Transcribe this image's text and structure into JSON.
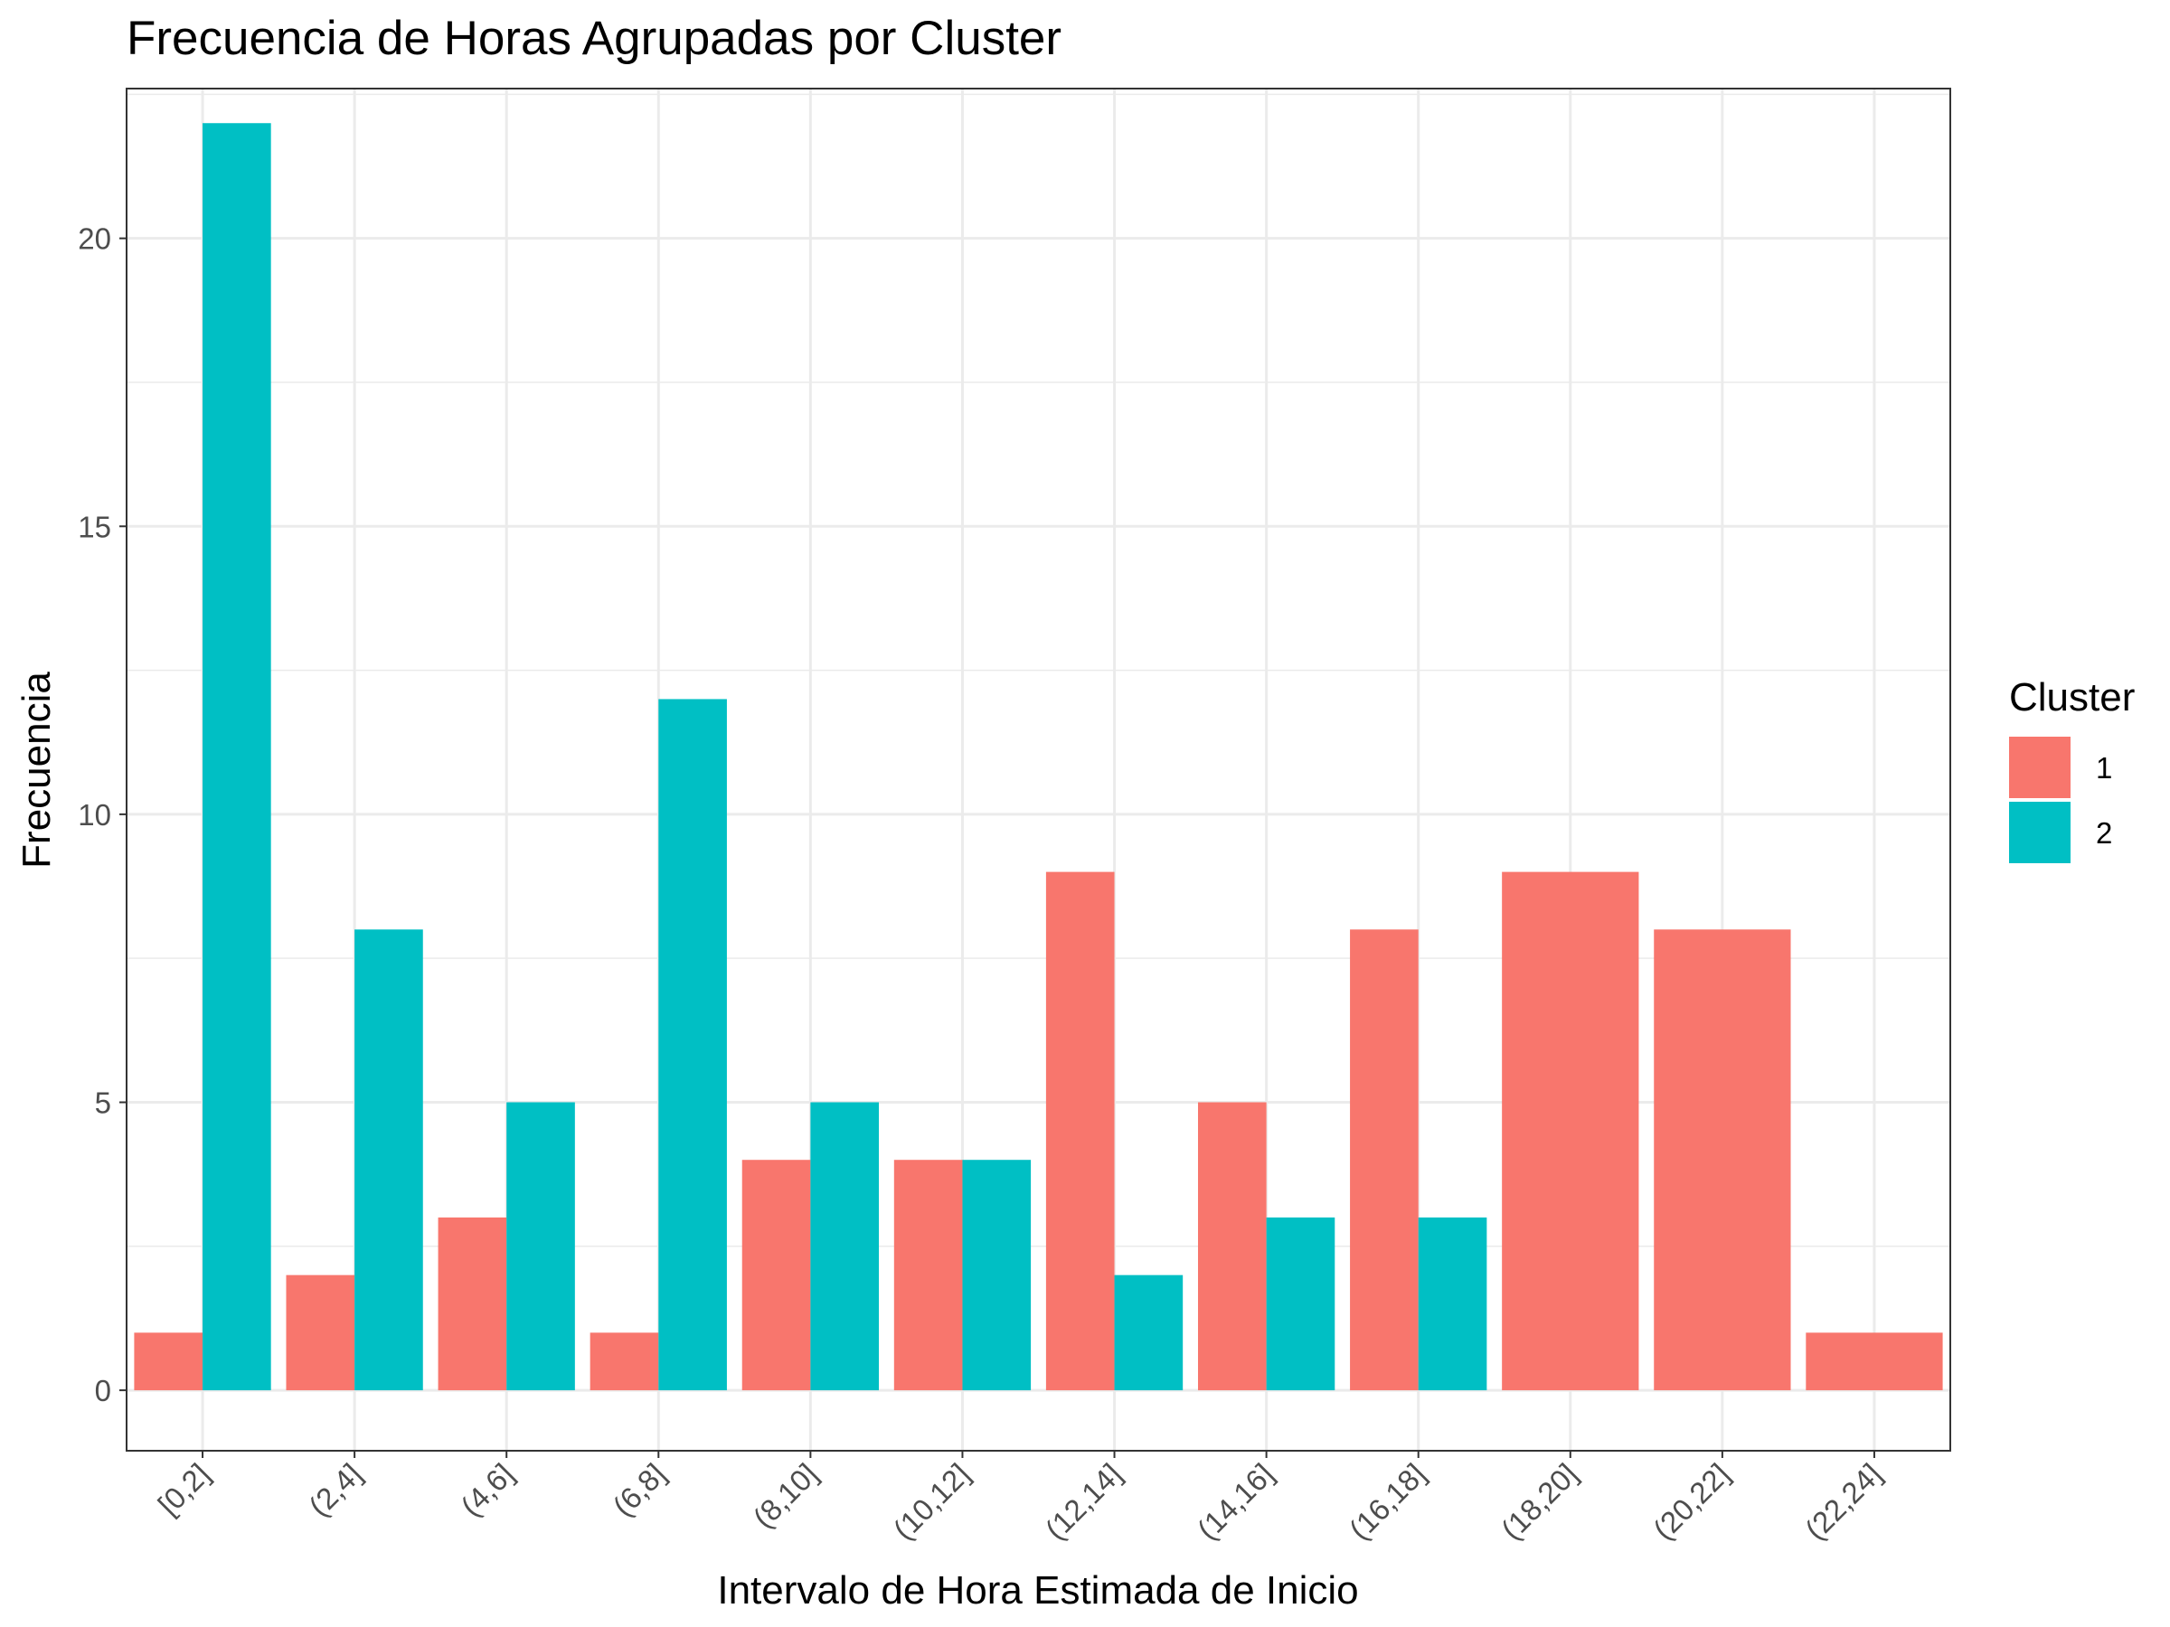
{
  "chart_data": {
    "type": "bar",
    "title": "Frecuencia de Horas Agrupadas por Cluster",
    "xlabel": "Intervalo de Hora Estimada de Inicio",
    "ylabel": "Frecuencia",
    "categories": [
      "[0,2]",
      "(2,4]",
      "(4,6]",
      "(6,8]",
      "(8,10]",
      "(10,12]",
      "(12,14]",
      "(14,16]",
      "(16,18]",
      "(18,20]",
      "(20,22]",
      "(22,24]"
    ],
    "series": [
      {
        "name": "1",
        "color": "#F8766D",
        "values": [
          1,
          2,
          3,
          1,
          4,
          4,
          9,
          5,
          8,
          9,
          8,
          1
        ]
      },
      {
        "name": "2",
        "color": "#00BFC4",
        "values": [
          22,
          8,
          5,
          12,
          5,
          4,
          2,
          3,
          3,
          0,
          0,
          0
        ]
      }
    ],
    "yticks": [
      0,
      5,
      10,
      15,
      20
    ],
    "ylim": [
      -1.05,
      22.6
    ],
    "grid": true,
    "legend": {
      "title": "Cluster",
      "position": "right"
    },
    "x_tick_rotation": 45
  }
}
